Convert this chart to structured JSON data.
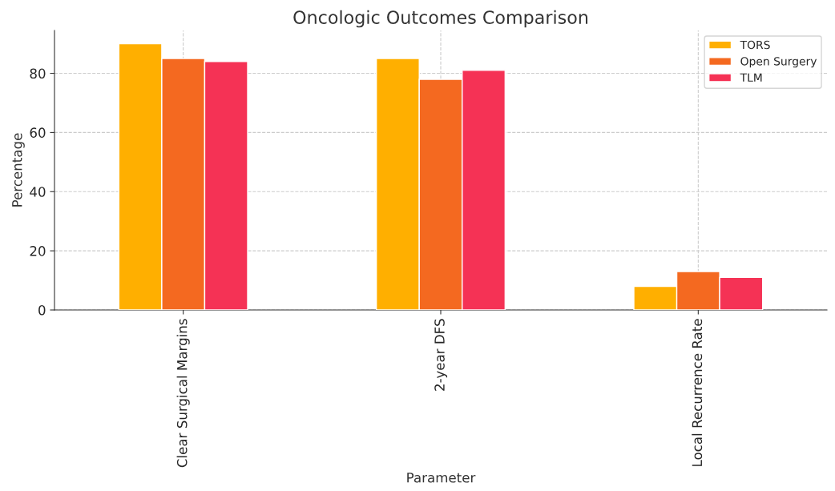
{
  "chart_data": {
    "type": "bar",
    "title": "Oncologic Outcomes Comparison",
    "xlabel": "Parameter",
    "ylabel": "Percentage",
    "categories": [
      "Clear Surgical Margins",
      "2-year DFS",
      "Local Recurrence Rate"
    ],
    "series": [
      {
        "name": "TORS",
        "color": "#ffaf00",
        "values": [
          90,
          85,
          8
        ]
      },
      {
        "name": "Open Surgery",
        "color": "#f46920",
        "values": [
          85,
          78,
          13
        ]
      },
      {
        "name": "TLM",
        "color": "#f53255",
        "values": [
          84,
          81,
          11
        ]
      }
    ],
    "ylim": [
      0,
      94.5
    ],
    "yticks": [
      0,
      20,
      40,
      60,
      80
    ],
    "grid": true,
    "legend": "top right"
  }
}
